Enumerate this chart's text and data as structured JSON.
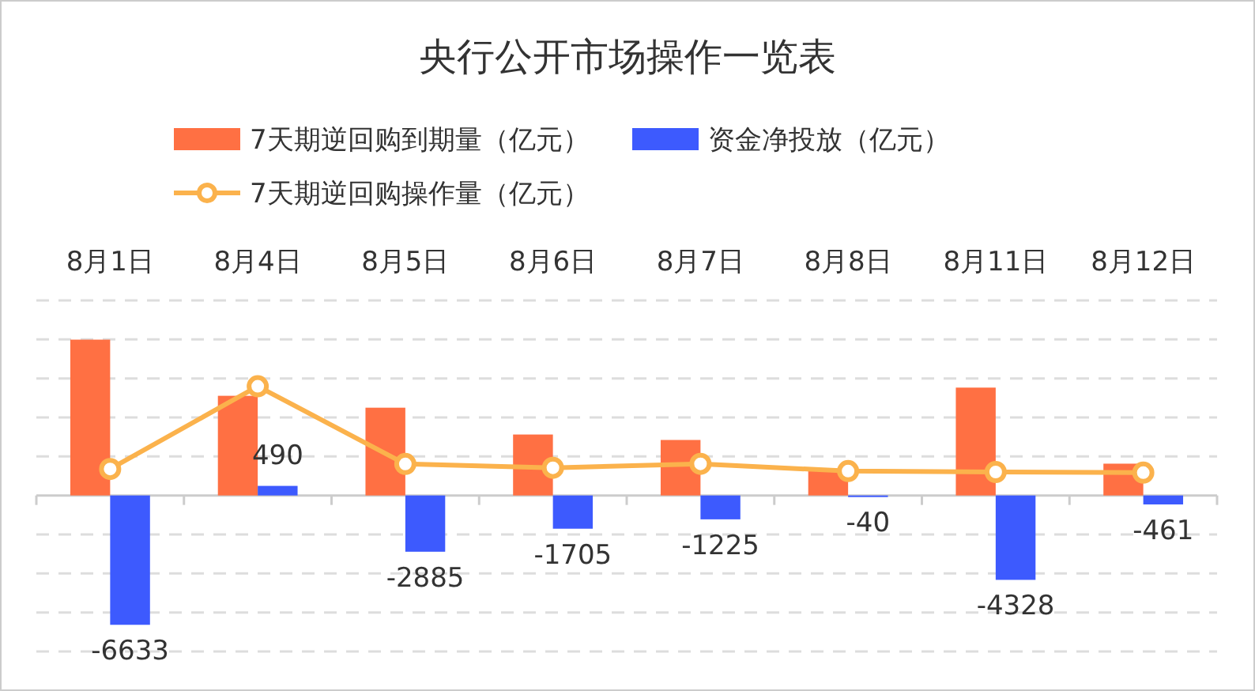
{
  "chart_data": {
    "type": "bar",
    "title": "央行公开市场操作一览表",
    "categories": [
      "8月1日",
      "8月4日",
      "8月5日",
      "8月6日",
      "8月7日",
      "8月8日",
      "8月11日",
      "8月12日"
    ],
    "series": [
      {
        "name": "7天期逆回购到期量（亿元）",
        "color": "#ff7043",
        "values": [
          7990,
          5110,
          4500,
          3125,
          2845,
          1290,
          5530,
          1630
        ]
      },
      {
        "name": "资金净投放（亿元）",
        "color": "#3d5afe",
        "values": [
          -6633,
          490,
          -2885,
          -1705,
          -1225,
          -40,
          -4328,
          -461
        ],
        "value_labels": [
          "-6633",
          "490",
          "-2885",
          "-1705",
          "-1225",
          "-40",
          "-4328",
          "-461"
        ]
      },
      {
        "name": "7天期逆回购操作量（亿元）",
        "type": "line",
        "color": "#fbb24c",
        "values": [
          1357,
          5600,
          1615,
          1420,
          1620,
          1250,
          1202,
          1169
        ],
        "marker": "circle"
      }
    ],
    "ylim": [
      -8000,
      10000
    ],
    "yticks": [
      {
        "value": -8000,
        "label": null
      },
      {
        "value": -6000,
        "label": null
      },
      {
        "value": -4000,
        "label": null
      },
      {
        "value": -2000,
        "label": null
      },
      {
        "value": 0,
        "label": null
      },
      {
        "value": 2000,
        "label": null
      },
      {
        "value": 4000,
        "label": null
      },
      {
        "value": 6000,
        "label": null
      },
      {
        "value": 8000,
        "label": null
      },
      {
        "value": 10000,
        "label": null
      }
    ],
    "tick_labels": "x",
    "grid": "y",
    "legend": "top"
  }
}
